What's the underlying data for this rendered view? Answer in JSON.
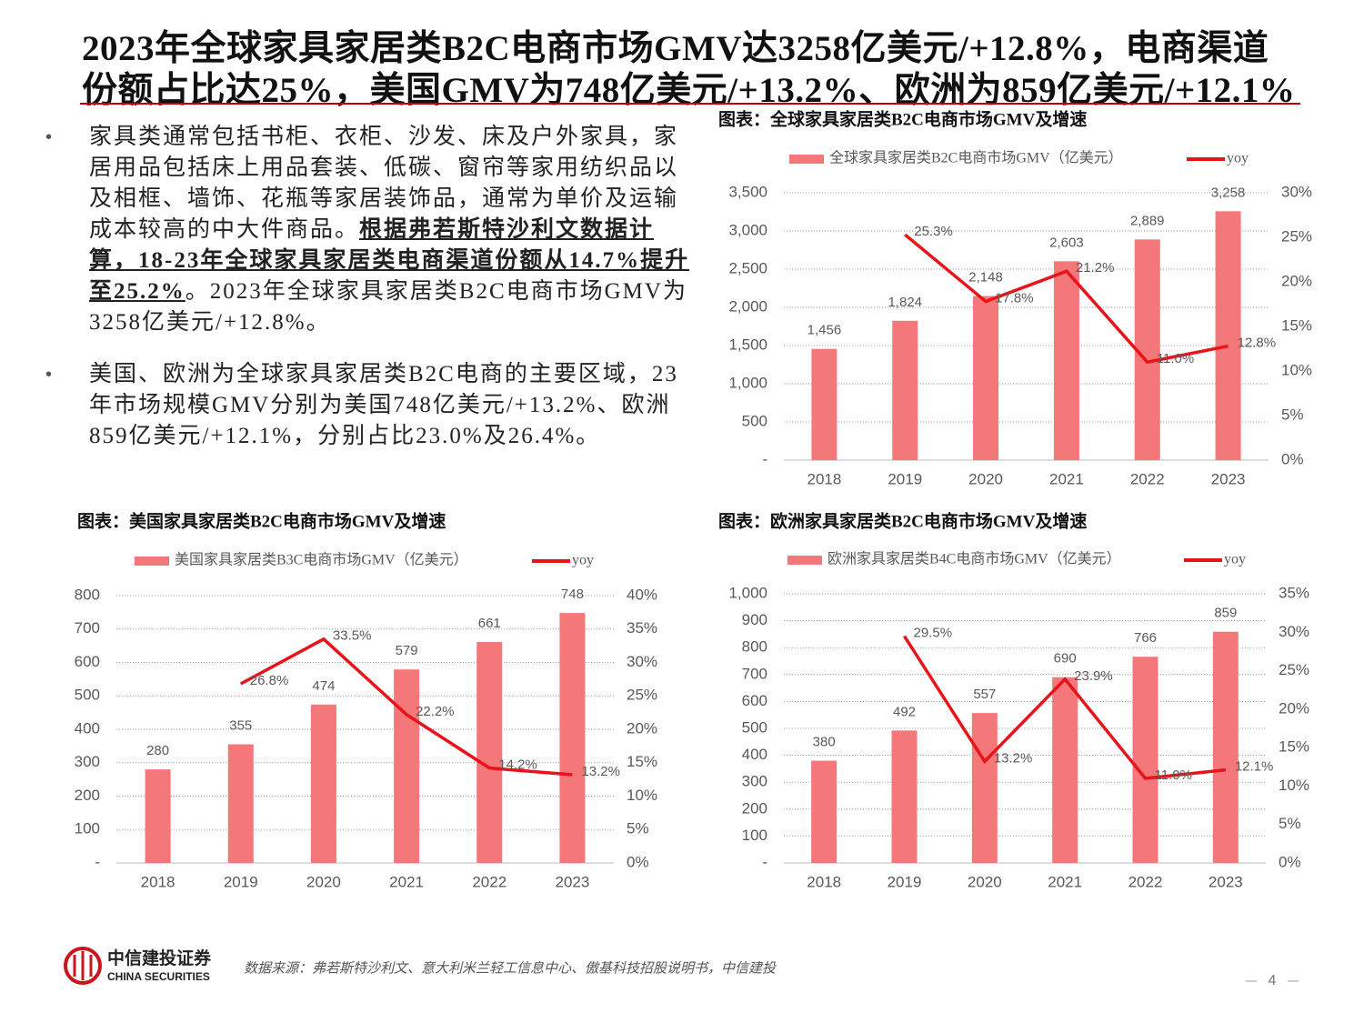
{
  "title": [
    "2023年全球家具家居类B2C电商市场GMV达3258亿美元/+12.8%，电商渠道",
    "份额占比达25%，美国GMV为748亿美元/+13.2%、欧洲为859亿美元/+12.1%"
  ],
  "bullets": [
    [
      "家具类通常包括书柜、衣柜、沙发、床及户外家具，家居用品包括床上用品套装、低碳、窗帘等家用纺织品以及相框、墙饰、花瓶等家居装饰品，通常为单价及运输成本较高的中大件商品。",
      "根据弗若斯特沙利文数据计算，18-23年全球家具家居类电商渠道份额从14.7%提升至25.2%",
      "。2023年全球家具家居类B2C电商市场GMV为3258亿美元/+12.8%。"
    ],
    [
      "美国、欧洲为全球家具家居类B2C电商的主要区域，23年市场规模GMV分别为美国748亿美元/+13.2%、欧洲859亿美元/+12.1%，分别占比23.0%及26.4%。"
    ]
  ],
  "chart_data": [
    {
      "type": "combo",
      "title": "图表：全球家具家居类B2C电商市场GMV及增速",
      "categories": [
        "2018",
        "2019",
        "2020",
        "2021",
        "2022",
        "2023"
      ],
      "series": [
        {
          "name": "全球家具家居类B2C电商市场GMV（亿美元）",
          "kind": "bar",
          "color": "#f4777a",
          "values": [
            1456,
            1824,
            2148,
            2603,
            2889,
            3258
          ],
          "value_labels": [
            "1,456",
            "1,824",
            "2,148",
            "2,603",
            "2,889",
            "3,258"
          ]
        },
        {
          "name": "yoy",
          "kind": "line",
          "axis": "y2",
          "color": "#e8141a",
          "values": [
            null,
            25.3,
            17.8,
            21.2,
            11.0,
            12.8
          ],
          "value_labels": [
            null,
            "25.3%",
            "17.8%",
            "21.2%",
            "11.0%",
            "12.8%"
          ]
        }
      ],
      "ylim": [
        0,
        3500
      ],
      "yticks": [
        {
          "value": 0,
          "label": "-"
        },
        500,
        {
          "value": 1000,
          "label": "1,000"
        },
        {
          "value": 1500,
          "label": "1,500"
        },
        {
          "value": 2000,
          "label": "2,000"
        },
        {
          "value": 2500,
          "label": "2,500"
        },
        {
          "value": 3000,
          "label": "3,000"
        },
        {
          "value": 3500,
          "label": "3,500"
        }
      ],
      "y2lim": [
        0,
        30
      ],
      "y2ticks": [
        {
          "value": 0,
          "label": "0%"
        },
        {
          "value": 5,
          "label": "5%"
        },
        {
          "value": 10,
          "label": "10%"
        },
        {
          "value": 15,
          "label": "15%"
        },
        {
          "value": 20,
          "label": "20%"
        },
        {
          "value": 25,
          "label": "25%"
        },
        {
          "value": 30,
          "label": "30%"
        }
      ],
      "grid": true
    },
    {
      "type": "combo",
      "title": "图表：美国家具家居类B2C电商市场GMV及增速",
      "categories": [
        "2018",
        "2019",
        "2020",
        "2021",
        "2022",
        "2023"
      ],
      "series": [
        {
          "name": "美国家具家居类B3C电商市场GMV（亿美元）",
          "kind": "bar",
          "color": "#f4777a",
          "values": [
            280,
            355,
            474,
            579,
            661,
            748
          ]
        },
        {
          "name": "yoy",
          "kind": "line",
          "axis": "y2",
          "color": "#e8141a",
          "values": [
            null,
            26.8,
            33.5,
            22.2,
            14.2,
            13.2
          ],
          "value_labels": [
            null,
            "26.8%",
            "33.5%",
            "22.2%",
            "14.2%",
            "13.2%"
          ]
        }
      ],
      "ylim": [
        0,
        800
      ],
      "yticks": [
        {
          "value": 0,
          "label": "-"
        },
        100,
        200,
        300,
        400,
        500,
        600,
        700,
        800
      ],
      "y2lim": [
        0,
        40
      ],
      "y2ticks": [
        {
          "value": 0,
          "label": "0%"
        },
        {
          "value": 5,
          "label": "5%"
        },
        {
          "value": 10,
          "label": "10%"
        },
        {
          "value": 15,
          "label": "15%"
        },
        {
          "value": 20,
          "label": "20%"
        },
        {
          "value": 25,
          "label": "25%"
        },
        {
          "value": 30,
          "label": "30%"
        },
        {
          "value": 35,
          "label": "35%"
        },
        {
          "value": 40,
          "label": "40%"
        }
      ],
      "grid": true
    },
    {
      "type": "combo",
      "title": "图表：欧洲家具家居类B2C电商市场GMV及增速",
      "categories": [
        "2018",
        "2019",
        "2020",
        "2021",
        "2022",
        "2023"
      ],
      "series": [
        {
          "name": "欧洲家具家居类B4C电商市场GMV（亿美元）",
          "kind": "bar",
          "color": "#f4777a",
          "values": [
            380,
            492,
            557,
            690,
            766,
            859
          ]
        },
        {
          "name": "yoy",
          "kind": "line",
          "axis": "y2",
          "color": "#e8141a",
          "values": [
            null,
            29.5,
            13.2,
            23.9,
            11.0,
            12.1
          ],
          "value_labels": [
            null,
            "29.5%",
            "13.2%",
            "23.9%",
            "11.0%",
            "12.1%"
          ]
        }
      ],
      "ylim": [
        0,
        1000
      ],
      "yticks": [
        {
          "value": 0,
          "label": "-"
        },
        100,
        200,
        300,
        400,
        500,
        600,
        700,
        800,
        900,
        {
          "value": 1000,
          "label": "1,000"
        }
      ],
      "y2lim": [
        0,
        35
      ],
      "y2ticks": [
        {
          "value": 0,
          "label": "0%"
        },
        {
          "value": 5,
          "label": "5%"
        },
        {
          "value": 10,
          "label": "10%"
        },
        {
          "value": 15,
          "label": "15%"
        },
        {
          "value": 20,
          "label": "20%"
        },
        {
          "value": 25,
          "label": "25%"
        },
        {
          "value": 30,
          "label": "30%"
        },
        {
          "value": 35,
          "label": "35%"
        }
      ],
      "grid": true
    }
  ],
  "footer": {
    "logo_cn": "中信建投证券",
    "logo_en": "CHINA SECURITIES",
    "source": "数据来源：弗若斯特沙利文、意大利米兰轻工信息中心、傲基科技招股说明书，中信建投",
    "page": "4"
  }
}
